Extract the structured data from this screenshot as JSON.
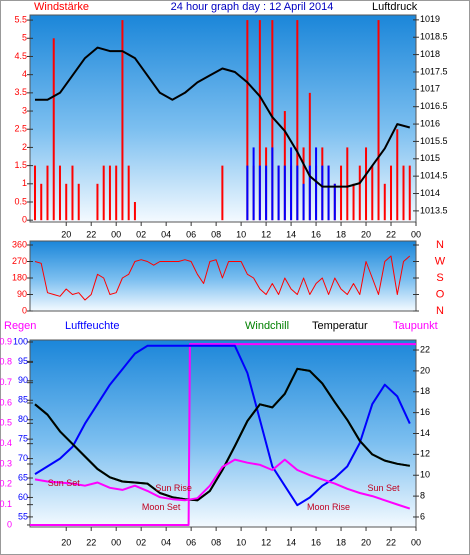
{
  "chart_data": [
    {
      "type": "line",
      "title": "24 hour graph day : 12 April 2014",
      "y_label": "Windstärke",
      "y2_label": "Luftdruck",
      "x": [
        17.5,
        18,
        18.5,
        19,
        19.5,
        20,
        20.5,
        21,
        21.5,
        22,
        22.5,
        23,
        23.5,
        24,
        24.5,
        25,
        25.5,
        26,
        26.5,
        27,
        27.5,
        28,
        28.5,
        29,
        29.5,
        30,
        30.5,
        31,
        31.5,
        32,
        32.5,
        33,
        33.5,
        34,
        34.5,
        35,
        35.5,
        36,
        36.5,
        37,
        37.5,
        38,
        38.5,
        39,
        39.5,
        40,
        40.5,
        41,
        41.5,
        42,
        42.5,
        43,
        43.5,
        44,
        44.5,
        45,
        45.5,
        46,
        46.5,
        47,
        47.5
      ],
      "xlim": [
        17.1,
        48
      ],
      "xticks": [
        20,
        22,
        {
          "value": 24,
          "label": "00"
        },
        {
          "value": 26,
          "label": "02"
        },
        {
          "value": 28,
          "label": "04"
        },
        {
          "value": 30,
          "label": "06"
        },
        {
          "value": 32,
          "label": "08"
        },
        {
          "value": 34,
          "label": "10"
        },
        {
          "value": 36,
          "label": "12"
        },
        {
          "value": 38,
          "label": "14"
        },
        {
          "value": 40,
          "label": "16"
        },
        {
          "value": 42,
          "label": "18"
        },
        {
          "value": 44,
          "label": "20"
        },
        {
          "value": 46,
          "label": "22"
        },
        {
          "value": 48,
          "label": "00"
        }
      ],
      "ylim": [
        -0.05,
        5.64
      ],
      "yticks": [
        0,
        0.5,
        1,
        1.5,
        2,
        2.5,
        3,
        3.5,
        4,
        4.5,
        5,
        5.5
      ],
      "y2lim": [
        1013.18,
        1019.14
      ],
      "y2ticks": [
        1013.5,
        1014,
        1014.5,
        1015,
        1015.5,
        1016,
        1016.5,
        1017,
        1017.5,
        1018,
        1018.5,
        1019
      ],
      "series": [
        {
          "type": "bar",
          "color": "#ff0000",
          "values": [
            1.5,
            1,
            1.5,
            5,
            1.5,
            1,
            1.5,
            1,
            0,
            0,
            1,
            1.5,
            1.5,
            1.5,
            5.5,
            1.5,
            0.5,
            0,
            0,
            0,
            0,
            0,
            0,
            0,
            0,
            0,
            0,
            0,
            0,
            0,
            1.5,
            0,
            0,
            0,
            5.5,
            1.5,
            5.5,
            2,
            5.5,
            1.5,
            3,
            1.5,
            5.5,
            2,
            3.5,
            1.5,
            2,
            1.5,
            1,
            1.5,
            2,
            1,
            1.5,
            2,
            1.5,
            5.5,
            1,
            1.5,
            2.5,
            1.5,
            1.5
          ]
        },
        {
          "type": "bar",
          "color": "#0000ff",
          "values": [
            0,
            0,
            0,
            0,
            0,
            0,
            0,
            0,
            0,
            0,
            0,
            0,
            0,
            0,
            0,
            0,
            0,
            0,
            0,
            0,
            0,
            0,
            0,
            0,
            0,
            0,
            0,
            0,
            0,
            0,
            0,
            0,
            0,
            0,
            1.5,
            2,
            1.5,
            1.5,
            2,
            1.5,
            1.5,
            2,
            1.5,
            1,
            1.5,
            2,
            1.5,
            1.5,
            1,
            0,
            0,
            0,
            0,
            0,
            0,
            0,
            0,
            0,
            0,
            0,
            0
          ]
        },
        {
          "type": "line",
          "axis": "y2",
          "color": "#000000",
          "x": [
            17.5,
            18.5,
            19.5,
            20.5,
            21.5,
            22.5,
            23.5,
            24.5,
            25.5,
            26.5,
            27.5,
            28.5,
            29.5,
            30.5,
            31.5,
            32.5,
            33.5,
            34.5,
            35.5,
            36.5,
            37.5,
            38.5,
            39.5,
            40.5,
            41.5,
            42.5,
            43.5,
            44.5,
            45.5,
            46.5,
            47.5
          ],
          "values": [
            1016.7,
            1016.7,
            1016.9,
            1017.4,
            1017.9,
            1018.2,
            1018.1,
            1018.1,
            1017.9,
            1017.4,
            1016.9,
            1016.7,
            1016.9,
            1017.2,
            1017.4,
            1017.6,
            1017.5,
            1017.2,
            1016.8,
            1016.2,
            1015.8,
            1015.2,
            1014.5,
            1014.2,
            1014.2,
            1014.2,
            1014.3,
            1014.8,
            1015.3,
            1016,
            1015.9
          ]
        }
      ]
    },
    {
      "type": "line",
      "x": [
        17.5,
        18,
        18.5,
        19,
        19.5,
        20,
        20.5,
        21,
        21.5,
        22,
        22.5,
        23,
        23.5,
        24,
        24.5,
        25,
        25.5,
        26,
        26.5,
        27,
        27.5,
        28,
        28.5,
        29,
        29.5,
        30,
        30.5,
        31,
        31.5,
        32,
        32.5,
        33,
        33.5,
        34,
        34.5,
        35,
        35.5,
        36,
        36.5,
        37,
        37.5,
        38,
        38.5,
        39,
        39.5,
        40,
        40.5,
        41,
        41.5,
        42,
        42.5,
        43,
        43.5,
        44,
        44.5,
        45,
        45.5,
        46,
        46.5,
        47,
        47.5
      ],
      "xlim": [
        17.1,
        48
      ],
      "ylim": [
        0,
        360
      ],
      "yticks": [
        0,
        90,
        180,
        270,
        360
      ],
      "y2lim": [
        0,
        360
      ],
      "y2ticks": [
        {
          "value": 0,
          "label": "N"
        },
        {
          "value": 90,
          "label": "O"
        },
        {
          "value": 180,
          "label": "S"
        },
        {
          "value": 270,
          "label": "W"
        },
        {
          "value": 360,
          "label": "N"
        }
      ],
      "series": [
        {
          "type": "line",
          "color": "#ff0000",
          "values": [
            270,
            260,
            100,
            90,
            80,
            120,
            90,
            100,
            60,
            90,
            200,
            180,
            90,
            100,
            180,
            200,
            270,
            280,
            270,
            250,
            270,
            270,
            270,
            270,
            280,
            270,
            200,
            150,
            270,
            280,
            180,
            270,
            270,
            270,
            200,
            180,
            120,
            90,
            150,
            90,
            180,
            120,
            90,
            180,
            90,
            150,
            180,
            90,
            180,
            120,
            90,
            150,
            90,
            270,
            180,
            90,
            270,
            300,
            90,
            270,
            300
          ]
        }
      ]
    },
    {
      "type": "line",
      "x": [
        17.5,
        18.5,
        19.5,
        20.5,
        21.5,
        22.5,
        23.5,
        24.5,
        25.5,
        26.5,
        27.5,
        28.5,
        29.5,
        30.5,
        31.5,
        32.5,
        33.5,
        34.5,
        35.5,
        36.5,
        37.5,
        38.5,
        39.5,
        40.5,
        41.5,
        42.5,
        43.5,
        44.5,
        45.5,
        46.5,
        47.5
      ],
      "xlim": [
        17.1,
        48
      ],
      "xticks": [
        20,
        22,
        {
          "value": 24,
          "label": "00"
        },
        {
          "value": 26,
          "label": "02"
        },
        {
          "value": 28,
          "label": "04"
        },
        {
          "value": 30,
          "label": "06"
        },
        {
          "value": 32,
          "label": "08"
        },
        {
          "value": 34,
          "label": "10"
        },
        {
          "value": 36,
          "label": "12"
        },
        {
          "value": 38,
          "label": "14"
        },
        {
          "value": 40,
          "label": "16"
        },
        {
          "value": 42,
          "label": "18"
        },
        {
          "value": 44,
          "label": "20"
        },
        {
          "value": 46,
          "label": "22"
        },
        {
          "value": 48,
          "label": "00"
        }
      ],
      "ylim": [
        -0.01,
        0.91
      ],
      "yticks": [
        0,
        0.1,
        0.2,
        0.3,
        0.4,
        0.5,
        0.6,
        0.7,
        0.8,
        0.9
      ],
      "y2lim": [
        52.4,
        100.5
      ],
      "y2ticks": [
        55,
        60,
        65,
        70,
        75,
        80,
        85,
        90,
        95,
        100
      ],
      "y3lim": [
        5.04,
        22.96
      ],
      "y3ticks": [
        6,
        8,
        10,
        12,
        14,
        16,
        18,
        20,
        22
      ],
      "series": [
        {
          "name": "Regen",
          "type": "line",
          "color": "#ff00ff",
          "x": [
            17.1,
            29.8,
            29.9,
            48
          ],
          "values": [
            0,
            0,
            0.89,
            0.89
          ]
        },
        {
          "name": "Luftfeuchte",
          "type": "line",
          "axis": "y2",
          "color": "#0000ff",
          "values": [
            66,
            68,
            70,
            73,
            79,
            84,
            89,
            93,
            97,
            99,
            99,
            99,
            99,
            99,
            99,
            99,
            99,
            92,
            80,
            68,
            63,
            58,
            60,
            63,
            65,
            68,
            74,
            84,
            89,
            86,
            79
          ]
        },
        {
          "name": "Windchill",
          "type": "line",
          "axis": "y3",
          "color": "#008000",
          "values": [
            16.8,
            15.8,
            14.2,
            13,
            11.8,
            10.6,
            9.8,
            9.4,
            9.3,
            9.2,
            8.3,
            7.9,
            7.7,
            7.6,
            8.5,
            10.5,
            12.8,
            15.2,
            16.8,
            16.5,
            17.8,
            20.2,
            20,
            18.8,
            17,
            15.3,
            13.3,
            12,
            11.4,
            11.1,
            10.9
          ]
        },
        {
          "name": "Temperatur",
          "type": "line",
          "axis": "y3",
          "color": "#000000",
          "values": [
            16.8,
            15.8,
            14.2,
            13,
            11.8,
            10.6,
            9.8,
            9.4,
            9.3,
            9.2,
            8.3,
            7.9,
            7.7,
            7.6,
            8.5,
            10.5,
            12.8,
            15.2,
            16.8,
            16.5,
            17.8,
            20.2,
            20,
            18.8,
            17,
            15.3,
            13.3,
            12,
            11.4,
            11.1,
            10.9
          ]
        },
        {
          "name": "Taupunkt",
          "type": "line",
          "axis": "y3",
          "color": "#ff00ff",
          "values": [
            9.6,
            9.4,
            9.3,
            9.2,
            9,
            9.3,
            8.8,
            8.6,
            9,
            8.5,
            7.9,
            7.7,
            7.6,
            7.8,
            9,
            10.8,
            11.5,
            11.2,
            11,
            10.5,
            11.5,
            10.5,
            10,
            9.6,
            9.2,
            8.7,
            8.3,
            8,
            7.6,
            7.2,
            6.8
          ]
        }
      ],
      "annotations": [
        {
          "text": "Sun Set",
          "x": 19.8,
          "y": 9.2
        },
        {
          "text": "Sun Rise",
          "x": 28.6,
          "y": 8.7
        },
        {
          "text": "Moon Set",
          "x": 27.6,
          "y": 6.9
        },
        {
          "text": "Moon Rise",
          "x": 41,
          "y": 6.9
        },
        {
          "text": "Sun Set",
          "x": 45.4,
          "y": 8.7
        }
      ]
    }
  ]
}
